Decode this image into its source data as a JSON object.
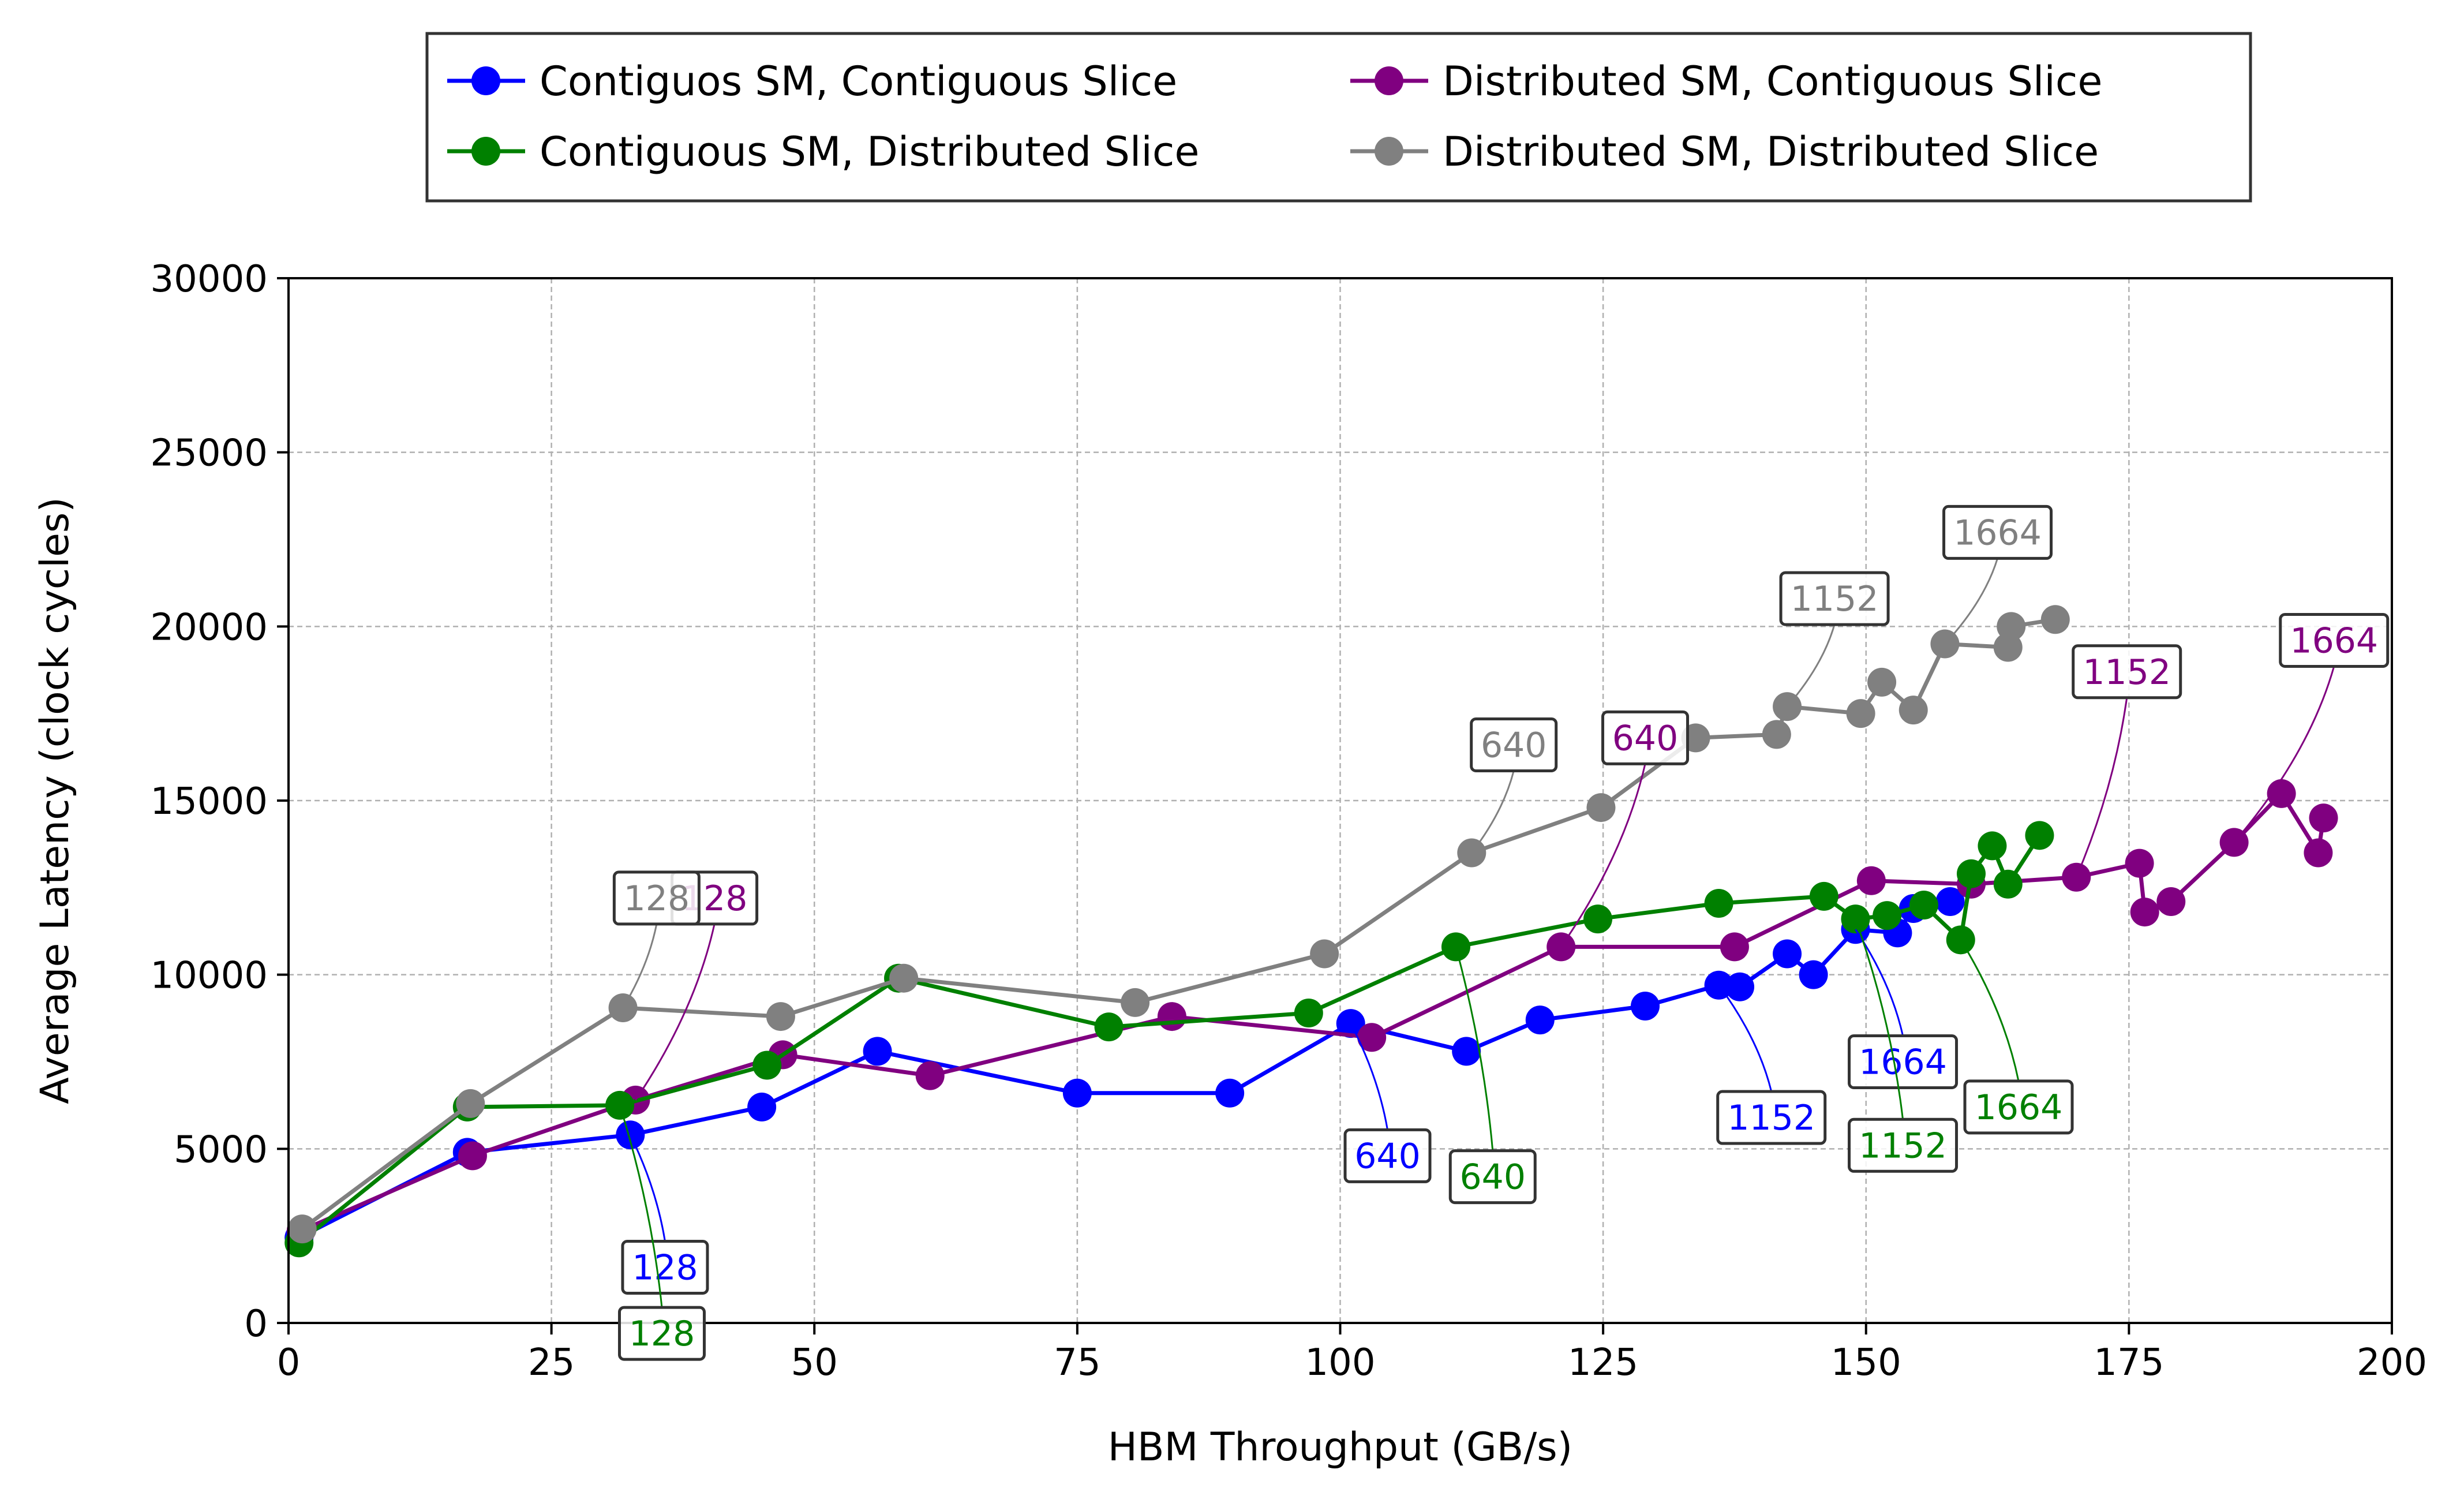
{
  "chart_data": {
    "type": "line",
    "title": "",
    "xlabel": "HBM Throughput (GB/s)",
    "ylabel": "Average Latency (clock cycles)",
    "xlim": [
      0,
      200
    ],
    "ylim": [
      0,
      30000
    ],
    "xticks": [
      0,
      25,
      50,
      75,
      100,
      125,
      150,
      175,
      200
    ],
    "yticks": [
      0,
      5000,
      10000,
      15000,
      20000,
      25000,
      30000
    ],
    "grid": true,
    "legend_position": "top-center",
    "series": [
      {
        "name": "Contiguos SM, Contiguous Slice",
        "color": "#0000ff",
        "x": [
          1.0,
          17.0,
          32.5,
          45.0,
          56.0,
          75.0,
          89.5,
          101.0,
          112.0,
          119.0,
          129.0,
          136.0,
          138.0,
          142.5,
          145.0,
          149.0,
          153.0,
          154.5,
          158.0
        ],
        "y": [
          2450,
          4900,
          5400,
          6200,
          7800,
          6600,
          6600,
          8600,
          7800,
          8700,
          9100,
          9700,
          9650,
          10600,
          10000,
          11300,
          11200,
          11900,
          12100
        ]
      },
      {
        "name": "Distributed SM, Contiguous Slice",
        "color": "#800080",
        "x": [
          1.2,
          17.5,
          33.0,
          47.0,
          61.0,
          84.0,
          103.0,
          121.0,
          137.5,
          150.5,
          160.0,
          170.0,
          176.0,
          176.5,
          179.0,
          185.0,
          189.5,
          193.0,
          193.5
        ],
        "y": [
          2650,
          4800,
          6400,
          7700,
          7100,
          8800,
          8200,
          10800,
          10800,
          12700,
          12600,
          12800,
          13200,
          11800,
          12100,
          13800,
          15200,
          13500,
          14500
        ]
      },
      {
        "name": "Contiguous SM, Distributed Slice",
        "color": "#008000",
        "x": [
          1.0,
          17.0,
          31.5,
          45.5,
          58.0,
          78.0,
          97.0,
          111.0,
          124.5,
          136.0,
          146.0,
          149.0,
          152.0,
          155.5,
          159.0,
          160.0,
          162.0,
          163.5,
          166.5
        ],
        "y": [
          2300,
          6200,
          6250,
          7400,
          9900,
          8500,
          8900,
          10800,
          11600,
          12050,
          12250,
          11600,
          11700,
          12000,
          11000,
          12900,
          13700,
          12600,
          14000
        ]
      },
      {
        "name": "Distributed SM, Distributed Slice",
        "color": "#808080",
        "x": [
          1.3,
          17.3,
          31.8,
          46.8,
          58.5,
          80.5,
          98.5,
          112.5,
          124.8,
          133.8,
          141.5,
          142.5,
          149.5,
          151.5,
          154.5,
          157.5,
          163.5,
          163.8,
          168.0
        ],
        "y": [
          2700,
          6300,
          9050,
          8800,
          9900,
          9200,
          10600,
          13500,
          14800,
          16800,
          16900,
          17700,
          17500,
          18400,
          17600,
          19500,
          19400,
          20000,
          20200
        ]
      }
    ],
    "legend_order": [
      0,
      1,
      2,
      3
    ],
    "annotations": [
      {
        "series": 0,
        "text": "128",
        "point_x": 32.5,
        "point_y": 5400,
        "text_x": 35.8,
        "text_y": 1600
      },
      {
        "series": 0,
        "text": "640",
        "point_x": 101.0,
        "point_y": 8600,
        "text_x": 104.5,
        "text_y": 4800
      },
      {
        "series": 0,
        "text": "1152",
        "point_x": 136.0,
        "point_y": 9700,
        "text_x": 141.0,
        "text_y": 5900
      },
      {
        "series": 0,
        "text": "1664",
        "point_x": 149.0,
        "point_y": 11300,
        "text_x": 153.5,
        "text_y": 7500
      },
      {
        "series": 1,
        "text": "128",
        "point_x": 33.0,
        "point_y": 6400,
        "text_x": 40.5,
        "text_y": 12200
      },
      {
        "series": 1,
        "text": "640",
        "point_x": 121.0,
        "point_y": 10800,
        "text_x": 129.0,
        "text_y": 16800
      },
      {
        "series": 1,
        "text": "1152",
        "point_x": 170.0,
        "point_y": 12800,
        "text_x": 174.8,
        "text_y": 18700
      },
      {
        "series": 1,
        "text": "1664",
        "point_x": 185.0,
        "point_y": 13800,
        "text_x": 194.5,
        "text_y": 19600
      },
      {
        "series": 2,
        "text": "128",
        "point_x": 31.5,
        "point_y": 6250,
        "text_x": 35.5,
        "text_y": -300
      },
      {
        "series": 2,
        "text": "640",
        "point_x": 111.0,
        "point_y": 10800,
        "text_x": 114.5,
        "text_y": 4200
      },
      {
        "series": 2,
        "text": "1152",
        "point_x": 149.0,
        "point_y": 11600,
        "text_x": 153.5,
        "text_y": 5100
      },
      {
        "series": 2,
        "text": "1664",
        "point_x": 159.0,
        "point_y": 11000,
        "text_x": 164.5,
        "text_y": 6200
      },
      {
        "series": 3,
        "text": "128",
        "point_x": 31.8,
        "point_y": 9050,
        "text_x": 35.0,
        "text_y": 12200
      },
      {
        "series": 3,
        "text": "640",
        "point_x": 112.5,
        "point_y": 13500,
        "text_x": 116.5,
        "text_y": 16600
      },
      {
        "series": 3,
        "text": "1152",
        "point_x": 142.5,
        "point_y": 17700,
        "text_x": 147.0,
        "text_y": 20800
      },
      {
        "series": 3,
        "text": "1664",
        "point_x": 157.5,
        "point_y": 19500,
        "text_x": 162.5,
        "text_y": 22700
      }
    ]
  }
}
